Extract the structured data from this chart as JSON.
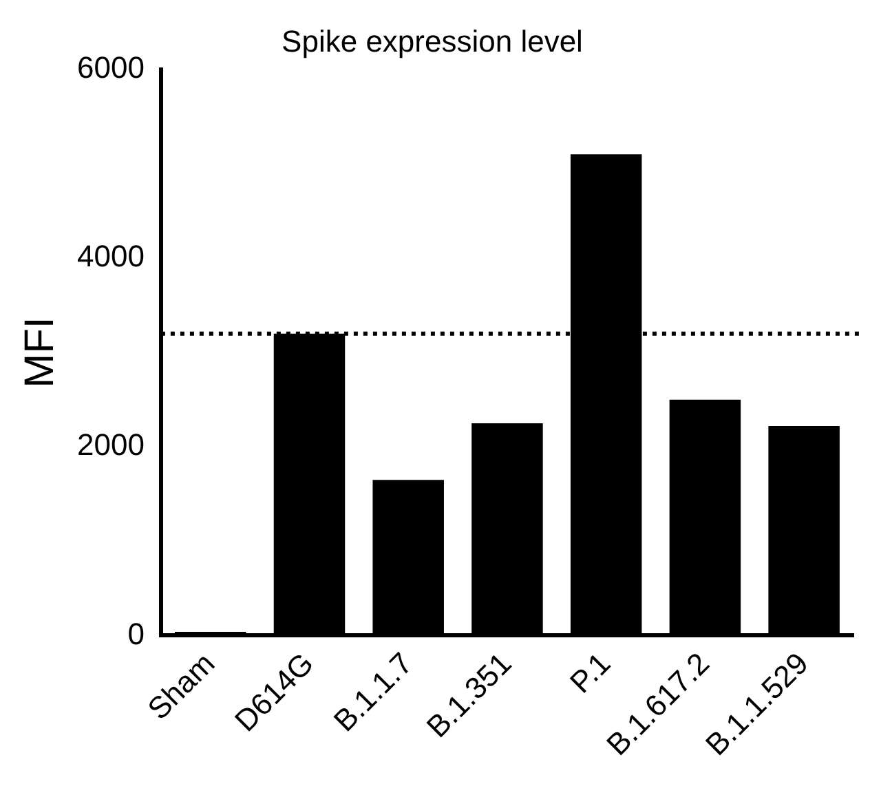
{
  "chart_data": {
    "type": "bar",
    "title": "Spike expression level",
    "ylabel": "MFI",
    "categories": [
      "Sham",
      "D614G",
      "B.1.1.7",
      "B.1.351",
      "P.1",
      "B.1.617.2",
      "B.1.1.529"
    ],
    "values": [
      40,
      3200,
      1650,
      2250,
      5100,
      2500,
      2220
    ],
    "color": "#000000",
    "ylim": [
      0,
      6000
    ],
    "yticks": [
      0,
      2000,
      4000,
      6000
    ],
    "grid": false,
    "legend": false,
    "ref_lines": [
      {
        "axis": "y",
        "value": 3200,
        "color": "#000000",
        "line_style": "dotted"
      }
    ]
  }
}
